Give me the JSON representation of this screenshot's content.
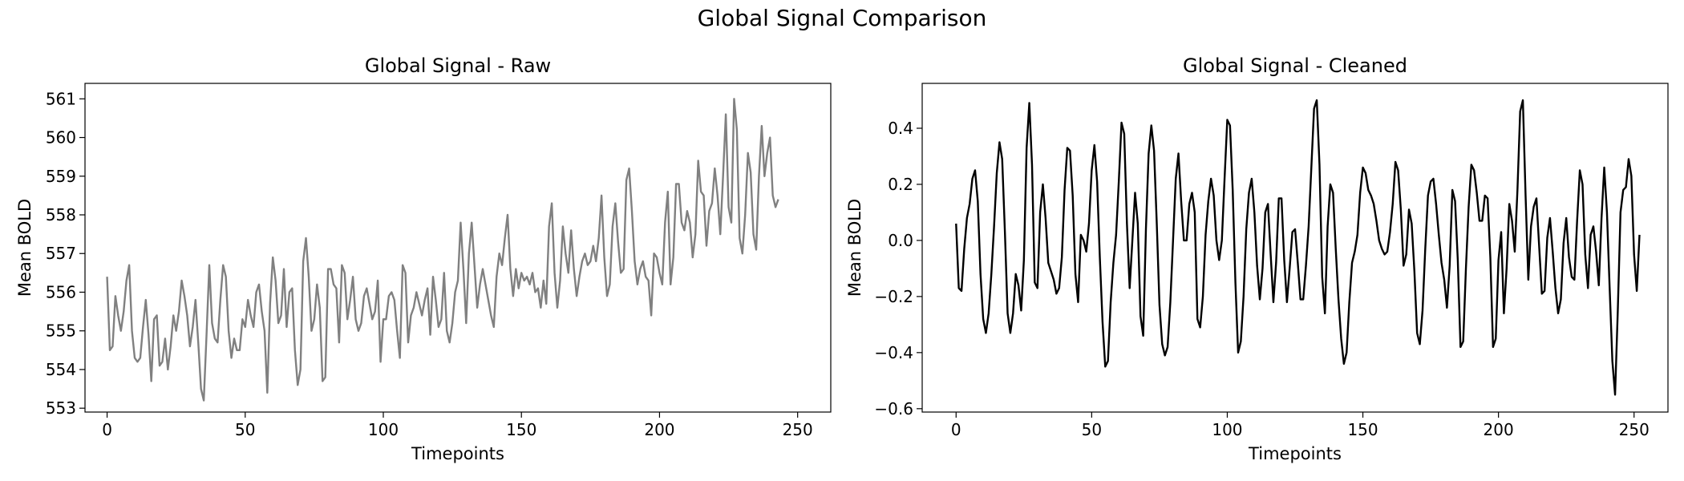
{
  "figure": {
    "title": "Global Signal Comparison"
  },
  "chart_data": [
    {
      "type": "line",
      "title": "Global Signal - Raw",
      "xlabel": "Timepoints",
      "ylabel": "Mean BOLD",
      "xlim": [
        -8,
        262
      ],
      "ylim": [
        552.9,
        561.4
      ],
      "xticks": [
        0,
        50,
        100,
        150,
        200,
        250
      ],
      "yticks": [
        553,
        554,
        555,
        556,
        557,
        558,
        559,
        560,
        561
      ],
      "grid": false,
      "color": "#808080",
      "series": [
        {
          "name": "Raw",
          "x_start": 0,
          "x_step": 1,
          "values": [
            556.4,
            554.5,
            554.6,
            555.9,
            555.4,
            555.0,
            555.5,
            556.3,
            556.7,
            555.0,
            554.3,
            554.2,
            554.3,
            555.1,
            555.8,
            554.9,
            553.7,
            555.3,
            555.4,
            554.1,
            554.2,
            554.8,
            554.0,
            554.6,
            555.4,
            555.0,
            555.5,
            556.3,
            555.9,
            555.4,
            554.6,
            555.1,
            555.8,
            554.7,
            553.5,
            553.2,
            554.9,
            556.7,
            555.2,
            554.8,
            554.7,
            555.8,
            556.7,
            556.4,
            555.0,
            554.3,
            554.8,
            554.5,
            554.5,
            555.3,
            555.1,
            555.8,
            555.4,
            555.1,
            556.0,
            556.2,
            555.5,
            555.0,
            553.4,
            555.7,
            556.9,
            556.3,
            555.2,
            555.4,
            556.6,
            555.1,
            556.0,
            556.1,
            554.5,
            553.6,
            554.0,
            556.8,
            557.4,
            556.4,
            555.0,
            555.3,
            556.2,
            555.6,
            553.7,
            553.8,
            556.6,
            556.6,
            556.2,
            556.1,
            554.7,
            556.7,
            556.5,
            555.3,
            555.8,
            556.4,
            555.3,
            555.0,
            555.2,
            555.9,
            556.1,
            555.7,
            555.3,
            555.5,
            556.3,
            554.2,
            555.3,
            555.3,
            555.9,
            556.0,
            555.8,
            555.0,
            554.3,
            556.7,
            556.5,
            554.7,
            555.4,
            555.6,
            556.0,
            555.7,
            555.4,
            555.8,
            556.1,
            554.9,
            556.4,
            555.8,
            555.1,
            555.3,
            556.5,
            555.0,
            554.7,
            555.2,
            556.0,
            556.3,
            557.8,
            556.6,
            555.2,
            557.0,
            557.8,
            556.7,
            555.6,
            556.2,
            556.6,
            556.2,
            555.8,
            555.4,
            555.1,
            556.4,
            557.0,
            556.7,
            557.4,
            558.0,
            556.6,
            555.9,
            556.6,
            556.1,
            556.5,
            556.3,
            556.4,
            556.2,
            556.5,
            556.0,
            556.1,
            555.6,
            556.3,
            555.7,
            557.7,
            558.3,
            556.5,
            555.6,
            556.3,
            557.7,
            557.0,
            556.5,
            557.6,
            556.6,
            555.9,
            556.4,
            556.8,
            557.0,
            556.7,
            556.8,
            557.2,
            556.8,
            557.4,
            558.5,
            556.9,
            555.9,
            556.2,
            557.7,
            558.3,
            557.3,
            556.5,
            556.6,
            558.9,
            559.2,
            558.1,
            556.8,
            556.2,
            556.6,
            556.8,
            556.4,
            556.3,
            555.4,
            557.0,
            556.9,
            556.5,
            556.2,
            557.8,
            558.6,
            556.2,
            556.9,
            558.8,
            558.8,
            557.8,
            557.6,
            558.1,
            557.8,
            556.9,
            557.5,
            559.4,
            558.6,
            558.5,
            557.2,
            558.1,
            558.3,
            559.2,
            558.5,
            557.5,
            559.0,
            560.6,
            558.2,
            557.8,
            561.0,
            560.2,
            557.4,
            557.0,
            558.0,
            559.6,
            559.1,
            557.5,
            557.1,
            559.0,
            560.3,
            559.0,
            559.6,
            560.0,
            558.5,
            558.2,
            558.4
          ]
        }
      ]
    },
    {
      "type": "line",
      "title": "Global Signal - Cleaned",
      "xlabel": "Timepoints",
      "ylabel": "Mean BOLD",
      "xlim": [
        -12.5,
        262.5
      ],
      "ylim": [
        -0.612,
        0.56
      ],
      "xticks": [
        0,
        50,
        100,
        150,
        200,
        250
      ],
      "yticks": [
        -0.6,
        -0.4,
        -0.2,
        0.0,
        0.2,
        0.4
      ],
      "ytick_labels": [
        "−0.6",
        "−0.4",
        "−0.2",
        "0.0",
        "0.2",
        "0.4"
      ],
      "grid": false,
      "color": "#000000",
      "series": [
        {
          "name": "Cleaned",
          "x_start": 0,
          "x_step": 1,
          "values": [
            0.06,
            -0.17,
            -0.18,
            -0.03,
            0.08,
            0.13,
            0.22,
            0.25,
            0.14,
            -0.12,
            -0.28,
            -0.33,
            -0.26,
            -0.12,
            0.05,
            0.24,
            0.35,
            0.29,
            0.03,
            -0.26,
            -0.33,
            -0.26,
            -0.12,
            -0.16,
            -0.25,
            -0.07,
            0.33,
            0.49,
            0.27,
            -0.15,
            -0.17,
            0.1,
            0.2,
            0.08,
            -0.08,
            -0.11,
            -0.14,
            -0.19,
            -0.17,
            -0.06,
            0.18,
            0.33,
            0.32,
            0.16,
            -0.12,
            -0.22,
            0.02,
            0.0,
            -0.04,
            0.06,
            0.25,
            0.34,
            0.21,
            -0.06,
            -0.29,
            -0.45,
            -0.43,
            -0.22,
            -0.08,
            0.02,
            0.21,
            0.42,
            0.38,
            0.06,
            -0.17,
            0.0,
            0.17,
            0.06,
            -0.27,
            -0.34,
            0.04,
            0.31,
            0.41,
            0.32,
            0.06,
            -0.23,
            -0.37,
            -0.41,
            -0.38,
            -0.22,
            0.0,
            0.22,
            0.31,
            0.14,
            0.0,
            0.0,
            0.13,
            0.17,
            0.1,
            -0.28,
            -0.31,
            -0.2,
            0.02,
            0.14,
            0.22,
            0.16,
            0.0,
            -0.07,
            0.0,
            0.22,
            0.43,
            0.41,
            0.18,
            -0.15,
            -0.4,
            -0.36,
            -0.2,
            0.04,
            0.17,
            0.22,
            0.1,
            -0.09,
            -0.21,
            -0.1,
            0.1,
            0.13,
            -0.05,
            -0.22,
            -0.08,
            0.15,
            0.15,
            -0.07,
            -0.22,
            -0.1,
            0.03,
            0.04,
            -0.08,
            -0.21,
            -0.21,
            -0.09,
            0.05,
            0.26,
            0.47,
            0.5,
            0.27,
            -0.13,
            -0.26,
            0.05,
            0.2,
            0.17,
            -0.03,
            -0.21,
            -0.35,
            -0.44,
            -0.4,
            -0.22,
            -0.08,
            -0.04,
            0.02,
            0.17,
            0.26,
            0.24,
            0.18,
            0.16,
            0.13,
            0.07,
            0.0,
            -0.03,
            -0.05,
            -0.04,
            0.03,
            0.13,
            0.28,
            0.25,
            0.11,
            -0.09,
            -0.05,
            0.11,
            0.06,
            -0.11,
            -0.33,
            -0.37,
            -0.25,
            -0.03,
            0.16,
            0.21,
            0.22,
            0.13,
            0.02,
            -0.08,
            -0.14,
            -0.24,
            -0.09,
            0.18,
            0.14,
            -0.07,
            -0.38,
            -0.36,
            -0.1,
            0.12,
            0.27,
            0.25,
            0.17,
            0.07,
            0.07,
            0.16,
            0.15,
            -0.06,
            -0.38,
            -0.35,
            -0.07,
            0.03,
            -0.26,
            -0.1,
            0.13,
            0.07,
            -0.04,
            0.18,
            0.46,
            0.5,
            0.16,
            -0.14,
            0.05,
            0.12,
            0.15,
            -0.02,
            -0.19,
            -0.18,
            0.01,
            0.08,
            -0.04,
            -0.17,
            -0.26,
            -0.21,
            -0.01,
            0.08,
            -0.06,
            -0.13,
            -0.14,
            0.07,
            0.25,
            0.2,
            -0.05,
            -0.17,
            0.02,
            0.05,
            -0.04,
            -0.16,
            0.08,
            0.26,
            0.1,
            -0.17,
            -0.43,
            -0.55,
            -0.25,
            0.1,
            0.18,
            0.19,
            0.29,
            0.23,
            -0.05,
            -0.18,
            0.02
          ]
        }
      ]
    }
  ]
}
